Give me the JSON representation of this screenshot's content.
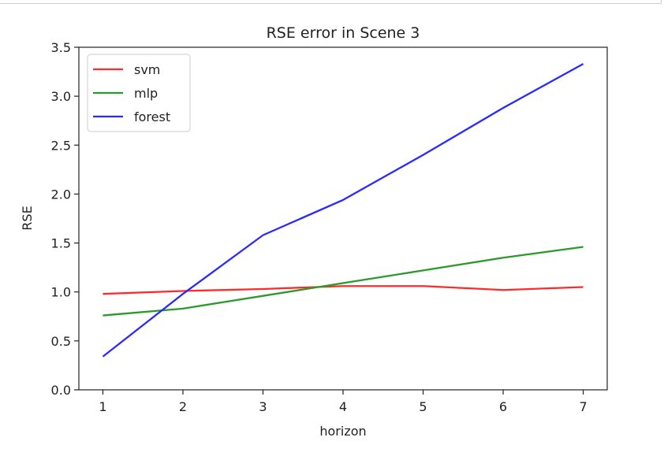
{
  "chart_data": {
    "type": "line",
    "title": "RSE error in Scene 3",
    "xlabel": "horizon",
    "ylabel": "RSE",
    "x": [
      1,
      2,
      3,
      4,
      5,
      6,
      7
    ],
    "xlim": [
      0.7,
      7.3
    ],
    "ylim": [
      0,
      3.5
    ],
    "xticks": [
      "1",
      "2",
      "3",
      "4",
      "5",
      "6",
      "7"
    ],
    "yticks": [
      "0.0",
      "0.5",
      "1.0",
      "1.5",
      "2.0",
      "2.5",
      "3.0",
      "3.5"
    ],
    "grid": false,
    "legend_position": "top-left",
    "series": [
      {
        "name": "svm",
        "color": "#ff2a2a",
        "values": [
          0.98,
          1.01,
          1.03,
          1.06,
          1.06,
          1.02,
          1.05
        ]
      },
      {
        "name": "mlp",
        "color": "#2a9a2a",
        "values": [
          0.76,
          0.83,
          0.96,
          1.09,
          1.22,
          1.35,
          1.46
        ]
      },
      {
        "name": "forest",
        "color": "#2a2aff",
        "values": [
          0.34,
          0.98,
          1.58,
          1.94,
          2.4,
          2.88,
          3.33
        ]
      }
    ]
  }
}
